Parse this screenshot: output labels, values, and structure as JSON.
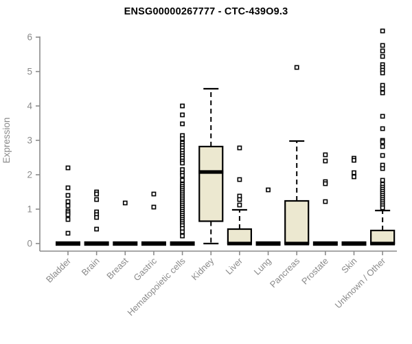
{
  "title": "ENSG00000267777 - CTC-439O9.3",
  "y_axis": {
    "label": "Expression",
    "ticks": [
      0,
      1,
      2,
      3,
      4,
      5,
      6
    ]
  },
  "colors": {
    "box_fill": "#ece8d0",
    "box_stroke": "#000000",
    "median": "#000000",
    "outlier_stroke": "#000000",
    "outlier_fill": "#ffffff",
    "axis": "#8a8a8a",
    "tick_label": "#8a8a8a",
    "category_label": "#8a8a8a",
    "title": "#000000",
    "background": "#ffffff"
  },
  "chart_data": {
    "type": "boxplot",
    "title": "ENSG00000267777 - CTC-439O9.3",
    "xlabel": "",
    "ylabel": "Expression",
    "ylim": [
      0,
      6.3
    ],
    "grid": false,
    "categories": [
      "Bladder",
      "Brain",
      "Breast",
      "Gastric",
      "Hematopoietic cells",
      "Kidney",
      "Liver",
      "Lung",
      "Pancreas",
      "Prostate",
      "Skin",
      "Unknown / Other"
    ],
    "series": [
      {
        "name": "Bladder",
        "whisker_low": 0,
        "q1": 0,
        "median": 0,
        "q3": 0,
        "whisker_high": 0,
        "outliers": [
          2.2,
          1.62,
          1.4,
          1.22,
          1.1,
          0.95,
          0.9,
          0.84,
          0.7,
          0.3
        ]
      },
      {
        "name": "Brain",
        "whisker_low": 0,
        "q1": 0,
        "median": 0,
        "q3": 0,
        "whisker_high": 0,
        "outliers": [
          1.5,
          1.44,
          1.28,
          0.92,
          0.84,
          0.76,
          0.42
        ]
      },
      {
        "name": "Breast",
        "whisker_low": 0,
        "q1": 0,
        "median": 0,
        "q3": 0,
        "whisker_high": 0,
        "outliers": [
          1.18
        ]
      },
      {
        "name": "Gastric",
        "whisker_low": 0,
        "q1": 0,
        "median": 0,
        "q3": 0,
        "whisker_high": 0,
        "outliers": [
          1.44,
          1.06
        ]
      },
      {
        "name": "Hematopoietic cells",
        "whisker_low": 0,
        "q1": 0,
        "median": 0,
        "q3": 0,
        "whisker_high": 0,
        "outliers": [
          4.0,
          3.74,
          3.48,
          3.14,
          3.05,
          2.92,
          2.85,
          2.78,
          2.7,
          2.62,
          2.55,
          2.48,
          2.4,
          2.34,
          2.15,
          2.05,
          1.98,
          1.84,
          1.72,
          1.66,
          1.6,
          1.54,
          1.48,
          1.42,
          1.36,
          1.3,
          1.24,
          1.18,
          1.12,
          1.06,
          1.0,
          0.94,
          0.88,
          0.82,
          0.76,
          0.7,
          0.64,
          0.58,
          0.52,
          0.44,
          0.34,
          0.22
        ]
      },
      {
        "name": "Kidney",
        "whisker_low": 0,
        "q1": 0.65,
        "median": 2.08,
        "q3": 2.82,
        "whisker_high": 4.5,
        "outliers": []
      },
      {
        "name": "Liver",
        "whisker_low": 0,
        "q1": 0,
        "median": 0,
        "q3": 0.42,
        "whisker_high": 0.98,
        "outliers": [
          2.78,
          1.86,
          1.38,
          1.28,
          1.12
        ]
      },
      {
        "name": "Lung",
        "whisker_low": 0,
        "q1": 0,
        "median": 0,
        "q3": 0,
        "whisker_high": 0,
        "outliers": [
          1.56
        ]
      },
      {
        "name": "Pancreas",
        "whisker_low": 0,
        "q1": 0,
        "median": 0,
        "q3": 1.24,
        "whisker_high": 2.98,
        "outliers": [
          5.12
        ]
      },
      {
        "name": "Prostate",
        "whisker_low": 0,
        "q1": 0,
        "median": 0,
        "q3": 0,
        "whisker_high": 0,
        "outliers": [
          2.58,
          2.4,
          1.8,
          1.74,
          1.22
        ]
      },
      {
        "name": "Skin",
        "whisker_low": 0,
        "q1": 0,
        "median": 0,
        "q3": 0,
        "whisker_high": 0,
        "outliers": [
          2.48,
          2.42,
          2.06,
          1.94
        ]
      },
      {
        "name": "Unknown / Other",
        "whisker_low": 0,
        "q1": 0,
        "median": 0,
        "q3": 0.38,
        "whisker_high": 0.96,
        "outliers": [
          6.18,
          5.76,
          5.6,
          5.44,
          5.2,
          5.12,
          5.04,
          4.96,
          4.6,
          4.5,
          4.38,
          3.7,
          3.34,
          3.0,
          2.96,
          2.82,
          2.56,
          2.28,
          2.18,
          1.84,
          1.72,
          1.64,
          1.58,
          1.52,
          1.46,
          1.4,
          1.34,
          1.28,
          1.22,
          1.16,
          1.1,
          1.04
        ]
      }
    ]
  }
}
